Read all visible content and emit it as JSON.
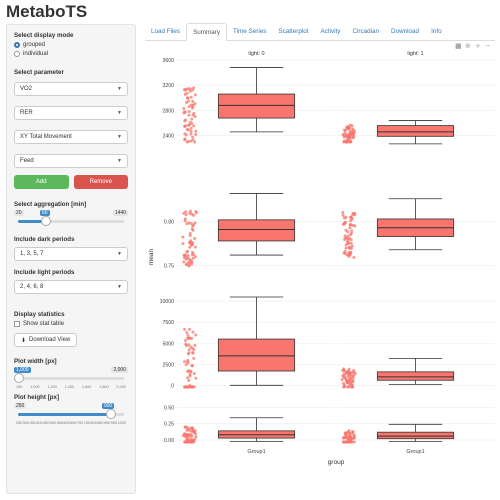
{
  "app": {
    "title": "MetaboTS"
  },
  "sidebar": {
    "display_mode": {
      "label": "Select display mode",
      "options": [
        "grouped",
        "individual"
      ],
      "selected": "grouped"
    },
    "parameter": {
      "label": "Select parameter",
      "selects": [
        "VO2",
        "RER",
        "XY Total Movement",
        "Feed"
      ]
    },
    "add_label": "Add",
    "remove_label": "Remove",
    "aggregation": {
      "label": "Select aggregation [min]",
      "min": "20",
      "value": "60",
      "max": "1440"
    },
    "dark": {
      "label": "Include dark periods",
      "value": "1, 3, 5, 7"
    },
    "light": {
      "label": "Include light periods",
      "value": "2, 4, 6, 8"
    },
    "stats": {
      "label": "Display statistics",
      "checkbox": "Show stat table"
    },
    "download_label": "Download View",
    "plot_width": {
      "label": "Plot width [px]",
      "value": "1,000",
      "max": "2,000",
      "ticks": [
        "100",
        "1,000",
        "1,200",
        "1,400",
        "1,600",
        "1,800",
        "2,000"
      ],
      "fraction": 0.0
    },
    "plot_height": {
      "label": "Plot height [px]",
      "min": "250",
      "value": "900",
      "ticks": [
        "250",
        "300",
        "350",
        "400",
        "450",
        "500",
        "550",
        "600",
        "650",
        "700",
        "750",
        "800",
        "850",
        "900",
        "950",
        "1000"
      ],
      "fraction": 0.87
    }
  },
  "tabs": [
    "Load Files",
    "Summary",
    "Time Series",
    "Scatterplot",
    "Activity",
    "Circadian",
    "Download",
    "Info"
  ],
  "active_tab": "Summary",
  "chart_data": {
    "type": "box",
    "xlabel": "group",
    "ylabel": "mean",
    "facet_columns": [
      "light: 0",
      "light: 1"
    ],
    "categories": [
      "Group1"
    ],
    "box_color": "#f8766d",
    "panels": [
      {
        "ticks": [
          "3600",
          "3200",
          "2800",
          "2400"
        ],
        "boxes": [
          {
            "facet": "light: 0",
            "q1": 2680,
            "median": 2880,
            "q3": 3060,
            "whisker_low": 2460,
            "whisker_high": 3480
          },
          {
            "facet": "light: 1",
            "q1": 2390,
            "median": 2460,
            "q3": 2560,
            "whisker_low": 2270,
            "whisker_high": 2640
          }
        ]
      },
      {
        "ticks": [
          "0.80",
          "0.75"
        ],
        "boxes": [
          {
            "facet": "light: 0",
            "q1": 0.778,
            "median": 0.791,
            "q3": 0.802,
            "whisker_low": 0.762,
            "whisker_high": 0.832
          },
          {
            "facet": "light: 1",
            "q1": 0.783,
            "median": 0.793,
            "q3": 0.803,
            "whisker_low": 0.768,
            "whisker_high": 0.826
          }
        ]
      },
      {
        "ticks": [
          "10000",
          "7500",
          "5000",
          "2500",
          "0"
        ],
        "boxes": [
          {
            "facet": "light: 0",
            "q1": 1700,
            "median": 3500,
            "q3": 5500,
            "whisker_low": 0,
            "whisker_high": 10500
          },
          {
            "facet": "light: 1",
            "q1": 600,
            "median": 1000,
            "q3": 1600,
            "whisker_low": 100,
            "whisker_high": 3200
          }
        ]
      },
      {
        "ticks": [
          "0.50",
          "0.25",
          "0.00"
        ],
        "boxes": [
          {
            "facet": "light: 0",
            "q1": 0.03,
            "median": 0.08,
            "q3": 0.14,
            "whisker_low": -0.02,
            "whisker_high": 0.34
          },
          {
            "facet": "light: 1",
            "q1": 0.02,
            "median": 0.06,
            "q3": 0.12,
            "whisker_low": -0.02,
            "whisker_high": 0.24
          }
        ]
      }
    ]
  }
}
